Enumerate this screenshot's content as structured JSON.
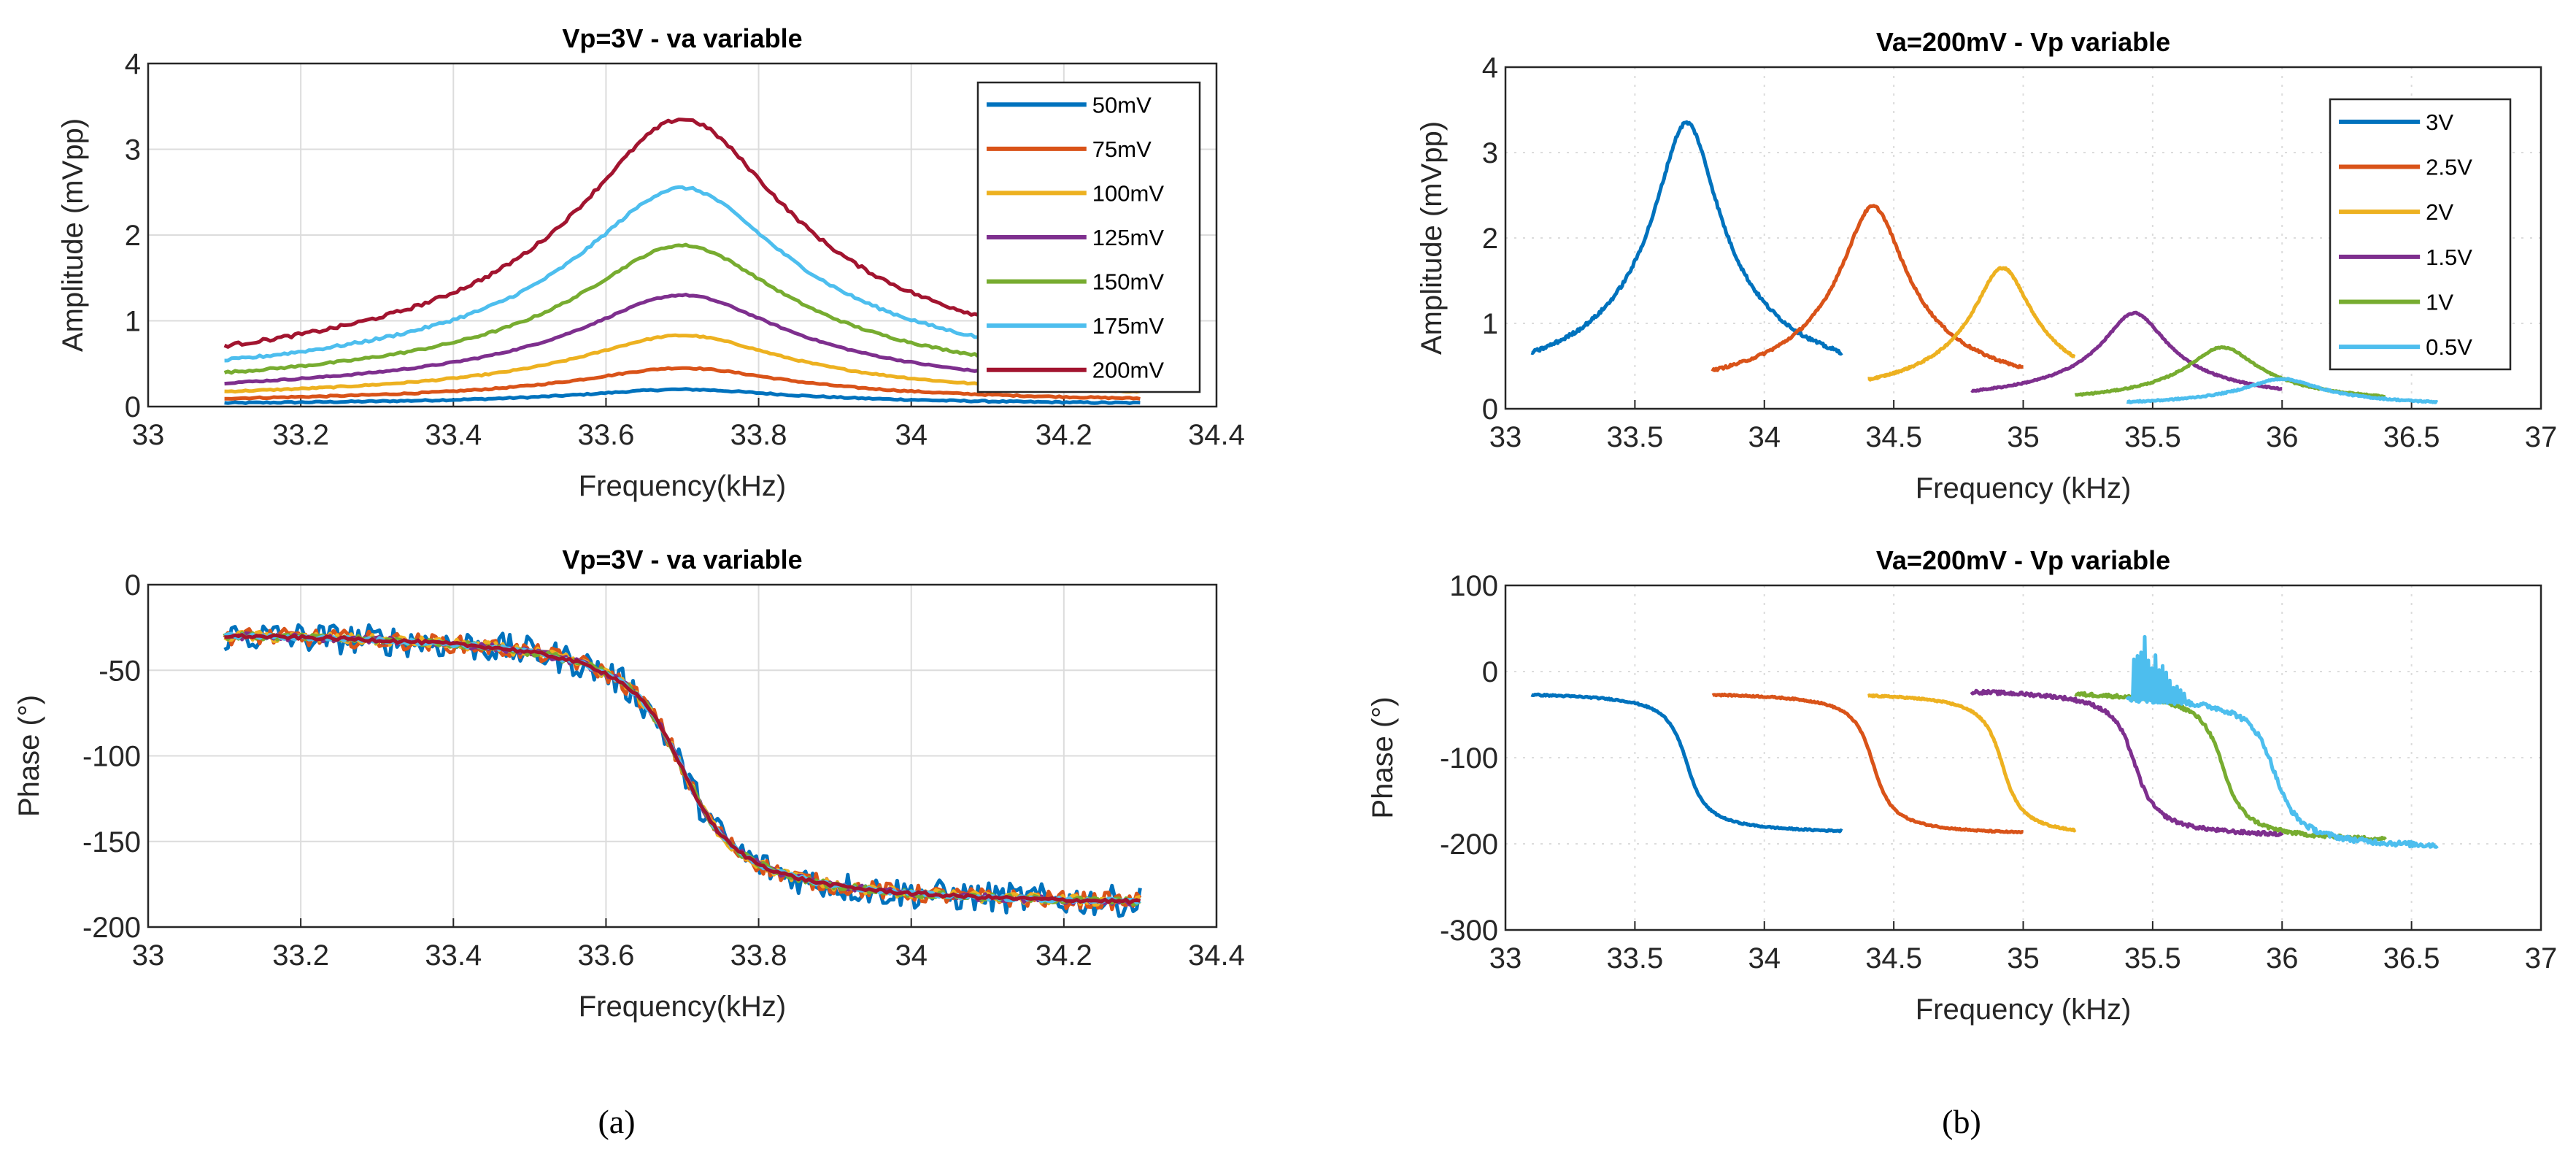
{
  "chart_data": [
    {
      "id": "a_amplitude",
      "type": "line",
      "title": "Vp=3V - va variable",
      "xlabel": "Frequency(kHz)",
      "ylabel": "Amplitude (mVpp)",
      "xlim": [
        33,
        34.4
      ],
      "ylim": [
        0,
        4
      ],
      "xticks": [
        "33",
        "33.2",
        "33.4",
        "33.6",
        "33.8",
        "34",
        "34.2",
        "34.4"
      ],
      "yticks": [
        "0",
        "1",
        "2",
        "3",
        "4"
      ],
      "grid": "solid",
      "legend_position": "top-right",
      "series": [
        {
          "name": "50mV",
          "color": "#0072BD",
          "f0": 33.7,
          "peak": 0.2,
          "width": 0.13,
          "range": [
            33.1,
            34.3
          ]
        },
        {
          "name": "75mV",
          "color": "#D95319",
          "f0": 33.7,
          "peak": 0.45,
          "width": 0.13,
          "range": [
            33.1,
            34.3
          ]
        },
        {
          "name": "100mV",
          "color": "#EDB120",
          "f0": 33.7,
          "peak": 0.83,
          "width": 0.13,
          "range": [
            33.1,
            34.3
          ]
        },
        {
          "name": "125mV",
          "color": "#7E2F8E",
          "f0": 33.7,
          "peak": 1.3,
          "width": 0.13,
          "range": [
            33.1,
            34.3
          ]
        },
        {
          "name": "150mV",
          "color": "#77AC30",
          "f0": 33.7,
          "peak": 1.88,
          "width": 0.13,
          "range": [
            33.1,
            34.3
          ]
        },
        {
          "name": "175mV",
          "color": "#4DBEEE",
          "f0": 33.7,
          "peak": 2.55,
          "width": 0.13,
          "range": [
            33.1,
            34.3
          ]
        },
        {
          "name": "200mV",
          "color": "#A2142F",
          "f0": 33.7,
          "peak": 3.35,
          "width": 0.13,
          "range": [
            33.1,
            34.3
          ]
        }
      ]
    },
    {
      "id": "a_phase",
      "type": "line",
      "title": "Vp=3V - va variable",
      "xlabel": "Frequency(kHz)",
      "ylabel": "Phase (°)",
      "xlim": [
        33,
        34.4
      ],
      "ylim": [
        -200,
        0
      ],
      "xticks": [
        "33",
        "33.2",
        "33.4",
        "33.6",
        "33.8",
        "34",
        "34.2",
        "34.4"
      ],
      "yticks": [
        "-200",
        "-150",
        "-100",
        "-50",
        "0"
      ],
      "grid": "solid",
      "series": [
        {
          "name": "50mV",
          "color": "#0072BD",
          "f0": 33.7,
          "phase_start": -25,
          "phase_end": -190,
          "width": 0.09,
          "range": [
            33.1,
            34.3
          ],
          "noise": 9
        },
        {
          "name": "75mV",
          "color": "#D95319",
          "f0": 33.7,
          "phase_start": -25,
          "phase_end": -190,
          "width": 0.09,
          "range": [
            33.1,
            34.3
          ],
          "noise": 5
        },
        {
          "name": "100mV",
          "color": "#EDB120",
          "f0": 33.7,
          "phase_start": -25,
          "phase_end": -190,
          "width": 0.09,
          "range": [
            33.1,
            34.3
          ],
          "noise": 3
        },
        {
          "name": "125mV",
          "color": "#7E2F8E",
          "f0": 33.7,
          "phase_start": -25,
          "phase_end": -190,
          "width": 0.09,
          "range": [
            33.1,
            34.3
          ],
          "noise": 2
        },
        {
          "name": "150mV",
          "color": "#77AC30",
          "f0": 33.7,
          "phase_start": -25,
          "phase_end": -190,
          "width": 0.09,
          "range": [
            33.1,
            34.3
          ],
          "noise": 2
        },
        {
          "name": "175mV",
          "color": "#4DBEEE",
          "f0": 33.7,
          "phase_start": -25,
          "phase_end": -190,
          "width": 0.09,
          "range": [
            33.1,
            34.3
          ],
          "noise": 1.5
        },
        {
          "name": "200mV",
          "color": "#A2142F",
          "f0": 33.7,
          "phase_start": -25,
          "phase_end": -190,
          "width": 0.09,
          "range": [
            33.1,
            34.3
          ],
          "noise": 1
        }
      ]
    },
    {
      "id": "b_amplitude",
      "type": "line",
      "title": "Va=200mV - Vp variable",
      "xlabel": "Frequency (kHz)",
      "ylabel": "Amplitude (mVpp)",
      "xlim": [
        33,
        37
      ],
      "ylim": [
        0,
        4
      ],
      "xticks": [
        "33",
        "33.5",
        "34",
        "34.5",
        "35",
        "35.5",
        "36",
        "36.5",
        "37"
      ],
      "yticks": [
        "0",
        "1",
        "2",
        "3",
        "4"
      ],
      "grid": "dotted",
      "legend_position": "top-right",
      "series": [
        {
          "name": "3V",
          "color": "#0072BD",
          "f0": 33.7,
          "peak": 3.35,
          "width": 0.12,
          "range": [
            33.1,
            34.3
          ]
        },
        {
          "name": "2.5V",
          "color": "#D95319",
          "f0": 34.42,
          "peak": 2.37,
          "width": 0.12,
          "range": [
            33.8,
            35.0
          ]
        },
        {
          "name": "2V",
          "color": "#EDB120",
          "f0": 34.92,
          "peak": 1.65,
          "width": 0.11,
          "range": [
            34.4,
            35.2
          ]
        },
        {
          "name": "1.5V",
          "color": "#7E2F8E",
          "f0": 35.43,
          "peak": 1.12,
          "width": 0.12,
          "range": [
            34.8,
            36.0
          ]
        },
        {
          "name": "1V",
          "color": "#77AC30",
          "f0": 35.77,
          "peak": 0.72,
          "width": 0.13,
          "range": [
            35.2,
            36.4
          ]
        },
        {
          "name": "0.5V",
          "color": "#4DBEEE",
          "f0": 36.0,
          "peak": 0.35,
          "width": 0.14,
          "range": [
            35.4,
            36.6
          ]
        }
      ]
    },
    {
      "id": "b_phase",
      "type": "line",
      "title": "Va=200mV - Vp variable",
      "xlabel": "Frequency (kHz)",
      "ylabel": "Phase (°)",
      "xlim": [
        33,
        37
      ],
      "ylim": [
        -300,
        100
      ],
      "xticks": [
        "33",
        "33.5",
        "34",
        "34.5",
        "35",
        "35.5",
        "36",
        "36.5",
        "37"
      ],
      "yticks": [
        "-300",
        "-200",
        "-100",
        "0",
        "100"
      ],
      "grid": "dotted",
      "series": [
        {
          "name": "3V",
          "color": "#0072BD",
          "f0": 33.7,
          "phase_start": -22,
          "phase_end": -190,
          "width": 0.09,
          "range": [
            33.1,
            34.3
          ],
          "noise": 0.8
        },
        {
          "name": "2.5V",
          "color": "#D95319",
          "f0": 34.42,
          "phase_start": -22,
          "phase_end": -192,
          "width": 0.09,
          "range": [
            33.8,
            35.0
          ],
          "noise": 0.8
        },
        {
          "name": "2V",
          "color": "#EDB120",
          "f0": 34.92,
          "phase_start": -22,
          "phase_end": -195,
          "width": 0.09,
          "range": [
            34.4,
            35.2
          ],
          "noise": 0.8
        },
        {
          "name": "1.5V",
          "color": "#7E2F8E",
          "f0": 35.43,
          "phase_start": -18,
          "phase_end": -195,
          "width": 0.1,
          "range": [
            34.8,
            36.0
          ],
          "noise": 2
        },
        {
          "name": "1V",
          "color": "#77AC30",
          "f0": 35.77,
          "phase_start": -20,
          "phase_end": -200,
          "width": 0.1,
          "range": [
            35.2,
            36.4
          ],
          "noise": 2
        },
        {
          "name": "0.5V",
          "color": "#4DBEEE",
          "f0": 35.97,
          "phase_start": -25,
          "phase_end": -208,
          "width": 0.11,
          "range": [
            35.4,
            36.6
          ],
          "noise": 3,
          "spike_region": [
            35.42,
            35.65
          ],
          "spike_max": 60
        }
      ]
    }
  ],
  "panel_labels": {
    "a": "(a)",
    "b": "(b)"
  }
}
